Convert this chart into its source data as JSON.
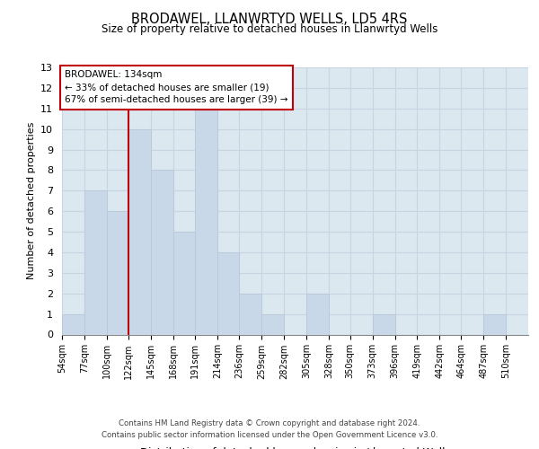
{
  "title": "BRODAWEL, LLANWRTYD WELLS, LD5 4RS",
  "subtitle": "Size of property relative to detached houses in Llanwrtyd Wells",
  "xlabel": "Distribution of detached houses by size in Llanwrtyd Wells",
  "ylabel": "Number of detached properties",
  "bin_labels": [
    "54sqm",
    "77sqm",
    "100sqm",
    "122sqm",
    "145sqm",
    "168sqm",
    "191sqm",
    "214sqm",
    "236sqm",
    "259sqm",
    "282sqm",
    "305sqm",
    "328sqm",
    "350sqm",
    "373sqm",
    "396sqm",
    "419sqm",
    "442sqm",
    "464sqm",
    "487sqm",
    "510sqm"
  ],
  "bar_heights": [
    1,
    7,
    6,
    10,
    8,
    5,
    11,
    4,
    2,
    1,
    0,
    2,
    0,
    0,
    1,
    0,
    0,
    0,
    0,
    1,
    0
  ],
  "bar_color": "#c8d8e8",
  "bar_edge_color": "#b8c8d8",
  "grid_color": "#c8d4e0",
  "background_color": "#dce8f0",
  "property_line_color": "#c0000a",
  "annotation_title": "BRODAWEL: 134sqm",
  "annotation_line1": "← 33% of detached houses are smaller (19)",
  "annotation_line2": "67% of semi-detached houses are larger (39) →",
  "annotation_box_color": "#ffffff",
  "annotation_box_edge": "#c0000a",
  "ylim": [
    0,
    13
  ],
  "yticks": [
    0,
    1,
    2,
    3,
    4,
    5,
    6,
    7,
    8,
    9,
    10,
    11,
    12,
    13
  ],
  "footnote1": "Contains HM Land Registry data © Crown copyright and database right 2024.",
  "footnote2": "Contains public sector information licensed under the Open Government Licence v3.0.",
  "bin_edges": [
    54,
    77,
    100,
    122,
    145,
    168,
    191,
    214,
    236,
    259,
    282,
    305,
    328,
    350,
    373,
    396,
    419,
    442,
    464,
    487,
    510,
    533
  ]
}
